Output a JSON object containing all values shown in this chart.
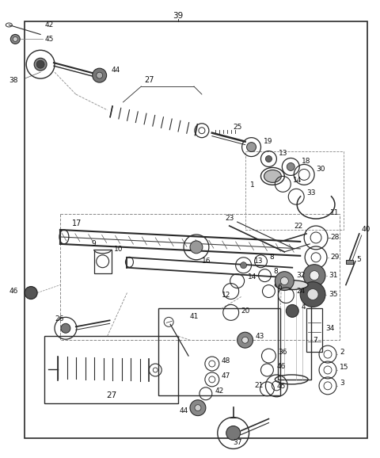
{
  "bg_color": "#ffffff",
  "lc": "#2a2a2a",
  "fig_width": 4.8,
  "fig_height": 5.78,
  "dpi": 100
}
